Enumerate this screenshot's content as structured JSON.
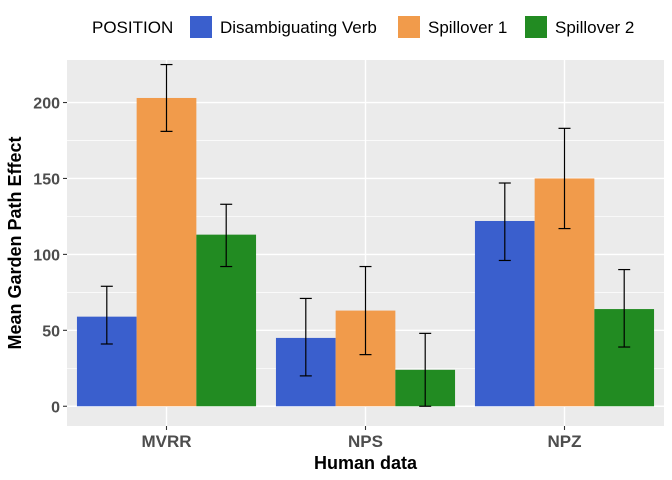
{
  "chart_data": {
    "type": "bar",
    "xlabel": "Human data",
    "ylabel": "Mean Garden Path Effect",
    "categories": [
      "MVRR",
      "NPS",
      "NPZ"
    ],
    "ylim": [
      -13,
      228
    ],
    "yticks": [
      0,
      50,
      100,
      150,
      200
    ],
    "ytick_labels": [
      "0",
      "50",
      "100",
      "150",
      "200"
    ],
    "grid": true,
    "legend": {
      "title": "POSITION",
      "placement": "top"
    },
    "series": [
      {
        "name": "Disambiguating Verb",
        "color": "#3a5fcd",
        "values": [
          59,
          45,
          122
        ],
        "error_low": [
          41,
          20,
          96
        ],
        "error_high": [
          79,
          71,
          147
        ]
      },
      {
        "name": "Spillover 1",
        "color": "#f19b4b",
        "values": [
          203,
          63,
          150
        ],
        "error_low": [
          181,
          34,
          117
        ],
        "error_high": [
          225,
          92,
          183
        ]
      },
      {
        "name": "Spillover 2",
        "color": "#228b22",
        "values": [
          113,
          24,
          64
        ],
        "error_low": [
          92,
          0,
          39
        ],
        "error_high": [
          133,
          48,
          90
        ]
      }
    ]
  }
}
